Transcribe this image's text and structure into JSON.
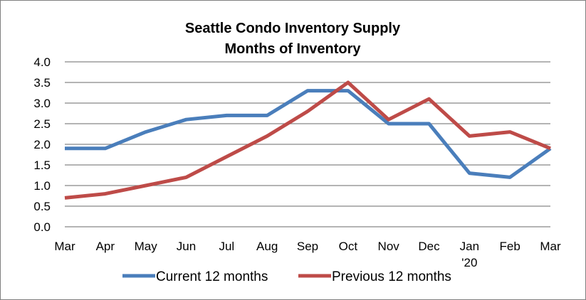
{
  "chart_data": {
    "type": "line",
    "title": "Seattle Condo Inventory Supply",
    "subtitle": "Months of Inventory",
    "xlabel": "",
    "ylabel": "",
    "categories": [
      "Mar",
      "Apr",
      "May",
      "Jun",
      "Jul",
      "Aug",
      "Sep",
      "Oct",
      "Nov",
      "Dec",
      "Jan",
      "Feb",
      "Mar"
    ],
    "category_sublabels": [
      "",
      "",
      "",
      "",
      "",
      "",
      "",
      "",
      "",
      "",
      "'20",
      "",
      ""
    ],
    "ylim": [
      0,
      4
    ],
    "yticks": [
      0,
      0.5,
      1,
      1.5,
      2,
      2.5,
      3,
      3.5,
      4
    ],
    "ytick_labels": [
      "0.0",
      "0.5",
      "1.0",
      "1.5",
      "2.0",
      "2.5",
      "3.0",
      "3.5",
      "4.0"
    ],
    "grid": "horizontal",
    "legend_position": "bottom",
    "series": [
      {
        "name": "Current 12 months",
        "color": "#4a7ebb",
        "values": [
          1.9,
          1.9,
          2.3,
          2.6,
          2.7,
          2.7,
          3.3,
          3.3,
          2.5,
          2.5,
          1.3,
          1.2,
          1.9
        ]
      },
      {
        "name": "Previous 12 months",
        "color": "#be4b48",
        "values": [
          0.7,
          0.8,
          1.0,
          1.2,
          1.7,
          2.2,
          2.8,
          3.5,
          2.6,
          3.1,
          2.2,
          2.3,
          1.9
        ]
      }
    ]
  }
}
